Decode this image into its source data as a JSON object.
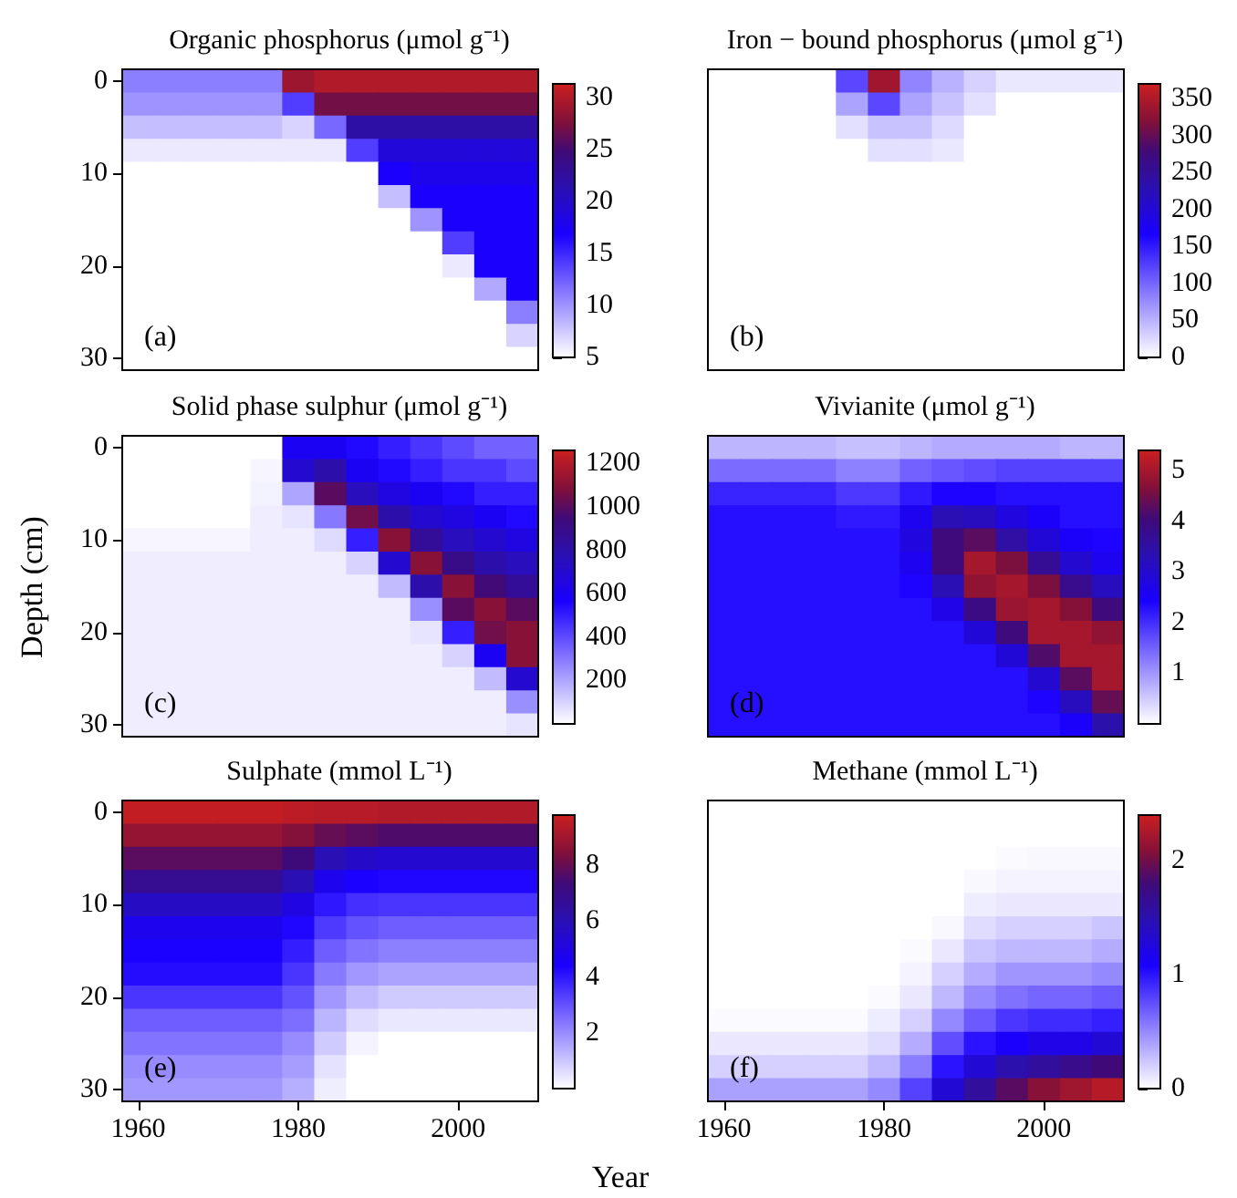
{
  "chart_data": [
    {
      "type": "heatmap",
      "title": "Organic phosphorus (μmol g⁻¹)",
      "annotations": [
        "(a)"
      ],
      "tick_labels": "y",
      "categories": [
        "1960",
        null,
        null,
        null,
        null,
        "1980",
        null,
        null,
        null,
        null,
        "2000",
        null,
        null
      ],
      "y_categories": [
        "0",
        null,
        null,
        null,
        "10",
        null,
        null,
        null,
        "20",
        null,
        null,
        null,
        "30"
      ],
      "clim": [
        5,
        31.3
      ],
      "cticks": [
        5,
        10,
        15,
        20,
        25,
        30
      ],
      "cells": [
        [
          11,
          11,
          11,
          11,
          11,
          29,
          30,
          30,
          30,
          30,
          30,
          30,
          30
        ],
        [
          10,
          10,
          10,
          10,
          10,
          14,
          27,
          27,
          27,
          27,
          27,
          27,
          27
        ],
        [
          8,
          8,
          8,
          8,
          8,
          7,
          12,
          22,
          22,
          22,
          22,
          22,
          22
        ],
        [
          6,
          6,
          6,
          6,
          6,
          6,
          6,
          14,
          19,
          19,
          19,
          19,
          19
        ],
        [
          5,
          5,
          5,
          5,
          5,
          5,
          5,
          5,
          17,
          18,
          18,
          18,
          18
        ],
        [
          5,
          5,
          5,
          5,
          5,
          5,
          5,
          5,
          8,
          17,
          17,
          17,
          17
        ],
        [
          5,
          5,
          5,
          5,
          5,
          5,
          5,
          5,
          5,
          10,
          17,
          17,
          17
        ],
        [
          5,
          5,
          5,
          5,
          5,
          5,
          5,
          5,
          5,
          5,
          14,
          17,
          17
        ],
        [
          5,
          5,
          5,
          5,
          5,
          5,
          5,
          5,
          5,
          5,
          6,
          17,
          17
        ],
        [
          5,
          5,
          5,
          5,
          5,
          5,
          5,
          5,
          5,
          5,
          5,
          9,
          17
        ],
        [
          5,
          5,
          5,
          5,
          5,
          5,
          5,
          5,
          5,
          5,
          5,
          5,
          11
        ],
        [
          5,
          5,
          5,
          5,
          5,
          5,
          5,
          5,
          5,
          5,
          5,
          5,
          7
        ],
        [
          5,
          5,
          5,
          5,
          5,
          5,
          5,
          5,
          5,
          5,
          5,
          5,
          5
        ]
      ]
    },
    {
      "type": "heatmap",
      "title": "Iron − bound phosphorus (μmol g⁻¹)",
      "annotations": [
        "(b)"
      ],
      "tick_labels": false,
      "categories": [
        "1960",
        null,
        null,
        null,
        null,
        "1980",
        null,
        null,
        null,
        null,
        "2000",
        null,
        null
      ],
      "y_categories": [
        "0",
        null,
        null,
        null,
        "10",
        null,
        null,
        null,
        "20",
        null,
        null,
        null,
        "30"
      ],
      "clim": [
        0,
        370
      ],
      "cticks": [
        0,
        50,
        100,
        150,
        200,
        250,
        300,
        350
      ],
      "cells": [
        [
          0,
          0,
          0,
          0,
          120,
          340,
          80,
          50,
          30,
          15,
          15,
          15,
          15
        ],
        [
          0,
          0,
          0,
          0,
          60,
          120,
          60,
          40,
          20,
          0,
          0,
          0,
          0
        ],
        [
          0,
          0,
          0,
          0,
          20,
          40,
          40,
          25,
          0,
          0,
          0,
          0,
          0
        ],
        [
          0,
          0,
          0,
          0,
          0,
          20,
          20,
          15,
          0,
          0,
          0,
          0,
          0
        ],
        [
          0,
          0,
          0,
          0,
          0,
          0,
          0,
          0,
          0,
          0,
          0,
          0,
          0
        ],
        [
          0,
          0,
          0,
          0,
          0,
          0,
          0,
          0,
          0,
          0,
          0,
          0,
          0
        ],
        [
          0,
          0,
          0,
          0,
          0,
          0,
          0,
          0,
          0,
          0,
          0,
          0,
          0
        ],
        [
          0,
          0,
          0,
          0,
          0,
          0,
          0,
          0,
          0,
          0,
          0,
          0,
          0
        ],
        [
          0,
          0,
          0,
          0,
          0,
          0,
          0,
          0,
          0,
          0,
          0,
          0,
          0
        ],
        [
          0,
          0,
          0,
          0,
          0,
          0,
          0,
          0,
          0,
          0,
          0,
          0,
          0
        ],
        [
          0,
          0,
          0,
          0,
          0,
          0,
          0,
          0,
          0,
          0,
          0,
          0,
          0
        ],
        [
          0,
          0,
          0,
          0,
          0,
          0,
          0,
          0,
          0,
          0,
          0,
          0,
          0
        ],
        [
          0,
          0,
          0,
          0,
          0,
          0,
          0,
          0,
          0,
          0,
          0,
          0,
          0
        ]
      ]
    },
    {
      "type": "heatmap",
      "title": "Solid phase sulphur (μmol g⁻¹)",
      "ylabel": "Depth (cm)",
      "annotations": [
        "(c)"
      ],
      "tick_labels": "y",
      "categories": [
        "1960",
        null,
        null,
        null,
        null,
        "1980",
        null,
        null,
        null,
        null,
        "2000",
        null,
        null
      ],
      "y_categories": [
        "0",
        null,
        null,
        null,
        "10",
        null,
        null,
        null,
        "20",
        null,
        null,
        null,
        "30"
      ],
      "clim": [
        0,
        1260
      ],
      "cticks": [
        200,
        400,
        600,
        800,
        1000,
        1200
      ],
      "cells": [
        [
          0,
          0,
          0,
          0,
          0,
          600,
          600,
          550,
          500,
          450,
          400,
          350,
          350
        ],
        [
          0,
          0,
          0,
          0,
          20,
          700,
          800,
          600,
          550,
          500,
          450,
          450,
          400
        ],
        [
          0,
          0,
          0,
          0,
          30,
          200,
          1000,
          750,
          650,
          600,
          550,
          500,
          500
        ],
        [
          0,
          0,
          0,
          0,
          40,
          60,
          300,
          1050,
          800,
          700,
          650,
          600,
          550
        ],
        [
          20,
          20,
          20,
          20,
          40,
          40,
          80,
          500,
          1100,
          850,
          750,
          700,
          650
        ],
        [
          40,
          40,
          40,
          40,
          40,
          40,
          40,
          100,
          700,
          1100,
          900,
          800,
          750
        ],
        [
          40,
          40,
          40,
          40,
          40,
          40,
          40,
          40,
          150,
          800,
          1100,
          950,
          850
        ],
        [
          40,
          40,
          40,
          40,
          40,
          40,
          40,
          40,
          40,
          250,
          1000,
          1100,
          1000
        ],
        [
          40,
          40,
          40,
          40,
          40,
          40,
          40,
          40,
          40,
          60,
          500,
          1050,
          1100
        ],
        [
          40,
          40,
          40,
          40,
          40,
          40,
          40,
          40,
          40,
          40,
          100,
          600,
          1100
        ],
        [
          40,
          40,
          40,
          40,
          40,
          40,
          40,
          40,
          40,
          40,
          40,
          150,
          700
        ],
        [
          40,
          40,
          40,
          40,
          40,
          40,
          40,
          40,
          40,
          40,
          40,
          40,
          250
        ],
        [
          40,
          40,
          40,
          40,
          40,
          40,
          40,
          40,
          40,
          40,
          40,
          40,
          60
        ]
      ]
    },
    {
      "type": "heatmap",
      "title": "Vivianite (μmol g⁻¹)",
      "annotations": [
        "(d)"
      ],
      "tick_labels": false,
      "categories": [
        "1960",
        null,
        null,
        null,
        null,
        "1980",
        null,
        null,
        null,
        null,
        "2000",
        null,
        null
      ],
      "y_categories": [
        "0",
        null,
        null,
        null,
        "10",
        null,
        null,
        null,
        "20",
        null,
        null,
        null,
        "30"
      ],
      "clim": [
        0,
        5.4
      ],
      "cticks": [
        1,
        2,
        3,
        4,
        5
      ],
      "cells": [
        [
          0.7,
          0.7,
          0.7,
          0.7,
          0.6,
          0.6,
          0.7,
          0.8,
          0.8,
          0.8,
          0.8,
          0.7,
          0.7
        ],
        [
          1.4,
          1.4,
          1.4,
          1.4,
          1.2,
          1.2,
          1.5,
          1.6,
          1.7,
          1.8,
          1.8,
          1.8,
          1.8
        ],
        [
          2.1,
          2.1,
          2.1,
          2.1,
          1.9,
          1.9,
          2.2,
          2.4,
          2.4,
          2.3,
          2.3,
          2.3,
          2.3
        ],
        [
          2.3,
          2.3,
          2.3,
          2.3,
          2.2,
          2.2,
          2.6,
          3.3,
          3.2,
          2.8,
          2.5,
          2.3,
          2.3
        ],
        [
          2.3,
          2.3,
          2.3,
          2.3,
          2.3,
          2.3,
          2.8,
          4.0,
          4.3,
          3.5,
          2.9,
          2.5,
          2.4
        ],
        [
          2.3,
          2.3,
          2.3,
          2.3,
          2.3,
          2.3,
          2.6,
          4.0,
          5.0,
          4.6,
          3.7,
          3.0,
          2.6
        ],
        [
          2.3,
          2.3,
          2.3,
          2.3,
          2.3,
          2.3,
          2.4,
          3.3,
          4.8,
          5.0,
          4.6,
          3.8,
          3.2
        ],
        [
          2.3,
          2.3,
          2.3,
          2.3,
          2.3,
          2.3,
          2.3,
          2.7,
          3.9,
          4.9,
          5.0,
          4.7,
          4.0
        ],
        [
          2.3,
          2.3,
          2.3,
          2.3,
          2.3,
          2.3,
          2.3,
          2.3,
          2.9,
          4.0,
          5.0,
          5.0,
          4.8
        ],
        [
          2.3,
          2.3,
          2.3,
          2.3,
          2.3,
          2.3,
          2.3,
          2.3,
          2.3,
          2.9,
          4.2,
          5.0,
          5.0
        ],
        [
          2.3,
          2.3,
          2.3,
          2.3,
          2.3,
          2.3,
          2.3,
          2.3,
          2.3,
          2.3,
          3.0,
          4.3,
          5.0
        ],
        [
          2.3,
          2.3,
          2.3,
          2.3,
          2.3,
          2.3,
          2.3,
          2.3,
          2.3,
          2.3,
          2.4,
          3.2,
          4.4
        ],
        [
          2.3,
          2.3,
          2.3,
          2.3,
          2.3,
          2.3,
          2.3,
          2.3,
          2.3,
          2.3,
          2.3,
          2.5,
          3.4
        ]
      ]
    },
    {
      "type": "heatmap",
      "title": "Sulphate (mmol L⁻¹)",
      "annotations": [
        "(e)"
      ],
      "categories": [
        "1960",
        null,
        null,
        null,
        null,
        "1980",
        null,
        null,
        null,
        null,
        "2000",
        null,
        null
      ],
      "y_categories": [
        "0",
        null,
        null,
        null,
        "10",
        null,
        null,
        null,
        "20",
        null,
        null,
        null,
        "30"
      ],
      "clim": [
        0,
        9.8
      ],
      "cticks": [
        2,
        4,
        6,
        8
      ],
      "cells": [
        [
          9.6,
          9.6,
          9.6,
          9.6,
          9.6,
          9.5,
          9.4,
          9.4,
          9.3,
          9.3,
          9.3,
          9.3,
          9.3
        ],
        [
          8.8,
          8.8,
          8.8,
          8.8,
          8.8,
          8.5,
          8.0,
          7.8,
          7.6,
          7.6,
          7.6,
          7.6,
          7.6
        ],
        [
          7.8,
          7.8,
          7.8,
          7.8,
          7.8,
          7.3,
          6.0,
          5.6,
          5.4,
          5.4,
          5.4,
          5.4,
          5.4
        ],
        [
          6.8,
          6.8,
          6.8,
          6.8,
          6.8,
          6.0,
          4.8,
          4.4,
          4.3,
          4.3,
          4.3,
          4.3,
          4.3
        ],
        [
          5.7,
          5.7,
          5.7,
          5.7,
          5.7,
          5.0,
          4.0,
          3.6,
          3.5,
          3.5,
          3.5,
          3.5,
          3.5
        ],
        [
          4.8,
          4.8,
          4.8,
          4.8,
          4.8,
          4.3,
          3.4,
          3.0,
          2.8,
          2.8,
          2.8,
          2.8,
          2.8
        ],
        [
          4.4,
          4.4,
          4.4,
          4.4,
          4.4,
          3.9,
          2.8,
          2.4,
          2.2,
          2.2,
          2.2,
          2.2,
          2.2
        ],
        [
          4.2,
          4.2,
          4.2,
          4.2,
          4.2,
          3.5,
          2.3,
          1.8,
          1.6,
          1.6,
          1.6,
          1.6,
          1.6
        ],
        [
          3.5,
          3.5,
          3.5,
          3.5,
          3.5,
          3.0,
          1.8,
          1.2,
          0.9,
          0.9,
          0.9,
          0.9,
          0.9
        ],
        [
          2.8,
          2.8,
          2.8,
          2.8,
          2.8,
          2.5,
          1.3,
          0.6,
          0.4,
          0.4,
          0.4,
          0.4,
          0.4
        ],
        [
          2.4,
          2.4,
          2.4,
          2.4,
          2.4,
          2.0,
          0.9,
          0.2,
          0,
          0,
          0,
          0,
          0
        ],
        [
          2.0,
          2.0,
          2.0,
          2.0,
          2.0,
          1.7,
          0.5,
          0,
          0,
          0,
          0,
          0,
          0
        ],
        [
          1.8,
          1.8,
          1.8,
          1.8,
          1.8,
          1.4,
          0.3,
          0,
          0,
          0,
          0,
          0,
          0
        ]
      ]
    },
    {
      "type": "heatmap",
      "title": "Methane (mmol L⁻¹)",
      "xlabel": "Year",
      "annotations": [
        "(f)"
      ],
      "tick_labels": "x",
      "categories": [
        "1960",
        null,
        null,
        null,
        null,
        "1980",
        null,
        null,
        null,
        null,
        "2000",
        null,
        null
      ],
      "y_categories": [
        "0",
        null,
        null,
        null,
        "10",
        null,
        null,
        null,
        "20",
        null,
        null,
        null,
        "30"
      ],
      "clim": [
        0,
        2.4
      ],
      "cticks": [
        0,
        1,
        2
      ],
      "cells": [
        [
          0,
          0,
          0,
          0,
          0,
          0,
          0,
          0,
          0,
          0,
          0,
          0,
          0
        ],
        [
          0,
          0,
          0,
          0,
          0,
          0,
          0,
          0,
          0,
          0,
          0,
          0,
          0
        ],
        [
          0,
          0,
          0,
          0,
          0,
          0,
          0,
          0,
          0,
          0.02,
          0.03,
          0.03,
          0.03
        ],
        [
          0,
          0,
          0,
          0,
          0,
          0,
          0,
          0,
          0.03,
          0.05,
          0.05,
          0.05,
          0.05
        ],
        [
          0,
          0,
          0,
          0,
          0,
          0,
          0,
          0,
          0.08,
          0.1,
          0.1,
          0.1,
          0.1
        ],
        [
          0,
          0,
          0,
          0,
          0,
          0,
          0,
          0.03,
          0.15,
          0.2,
          0.2,
          0.2,
          0.25
        ],
        [
          0,
          0,
          0,
          0,
          0,
          0,
          0.02,
          0.1,
          0.25,
          0.3,
          0.3,
          0.3,
          0.35
        ],
        [
          0,
          0,
          0,
          0,
          0,
          0,
          0.05,
          0.2,
          0.35,
          0.45,
          0.45,
          0.45,
          0.5
        ],
        [
          0,
          0,
          0,
          0,
          0,
          0.02,
          0.1,
          0.3,
          0.5,
          0.6,
          0.65,
          0.65,
          0.7
        ],
        [
          0.02,
          0.02,
          0.02,
          0.02,
          0.02,
          0.08,
          0.2,
          0.5,
          0.7,
          0.85,
          0.9,
          0.9,
          0.95
        ],
        [
          0.1,
          0.1,
          0.1,
          0.1,
          0.1,
          0.15,
          0.35,
          0.75,
          1.0,
          1.1,
          1.2,
          1.2,
          1.3
        ],
        [
          0.2,
          0.2,
          0.2,
          0.2,
          0.2,
          0.3,
          0.55,
          1.0,
          1.3,
          1.5,
          1.6,
          1.7,
          1.8
        ],
        [
          0.4,
          0.4,
          0.4,
          0.4,
          0.4,
          0.5,
          0.8,
          1.3,
          1.6,
          1.9,
          2.1,
          2.2,
          2.3
        ]
      ]
    }
  ]
}
